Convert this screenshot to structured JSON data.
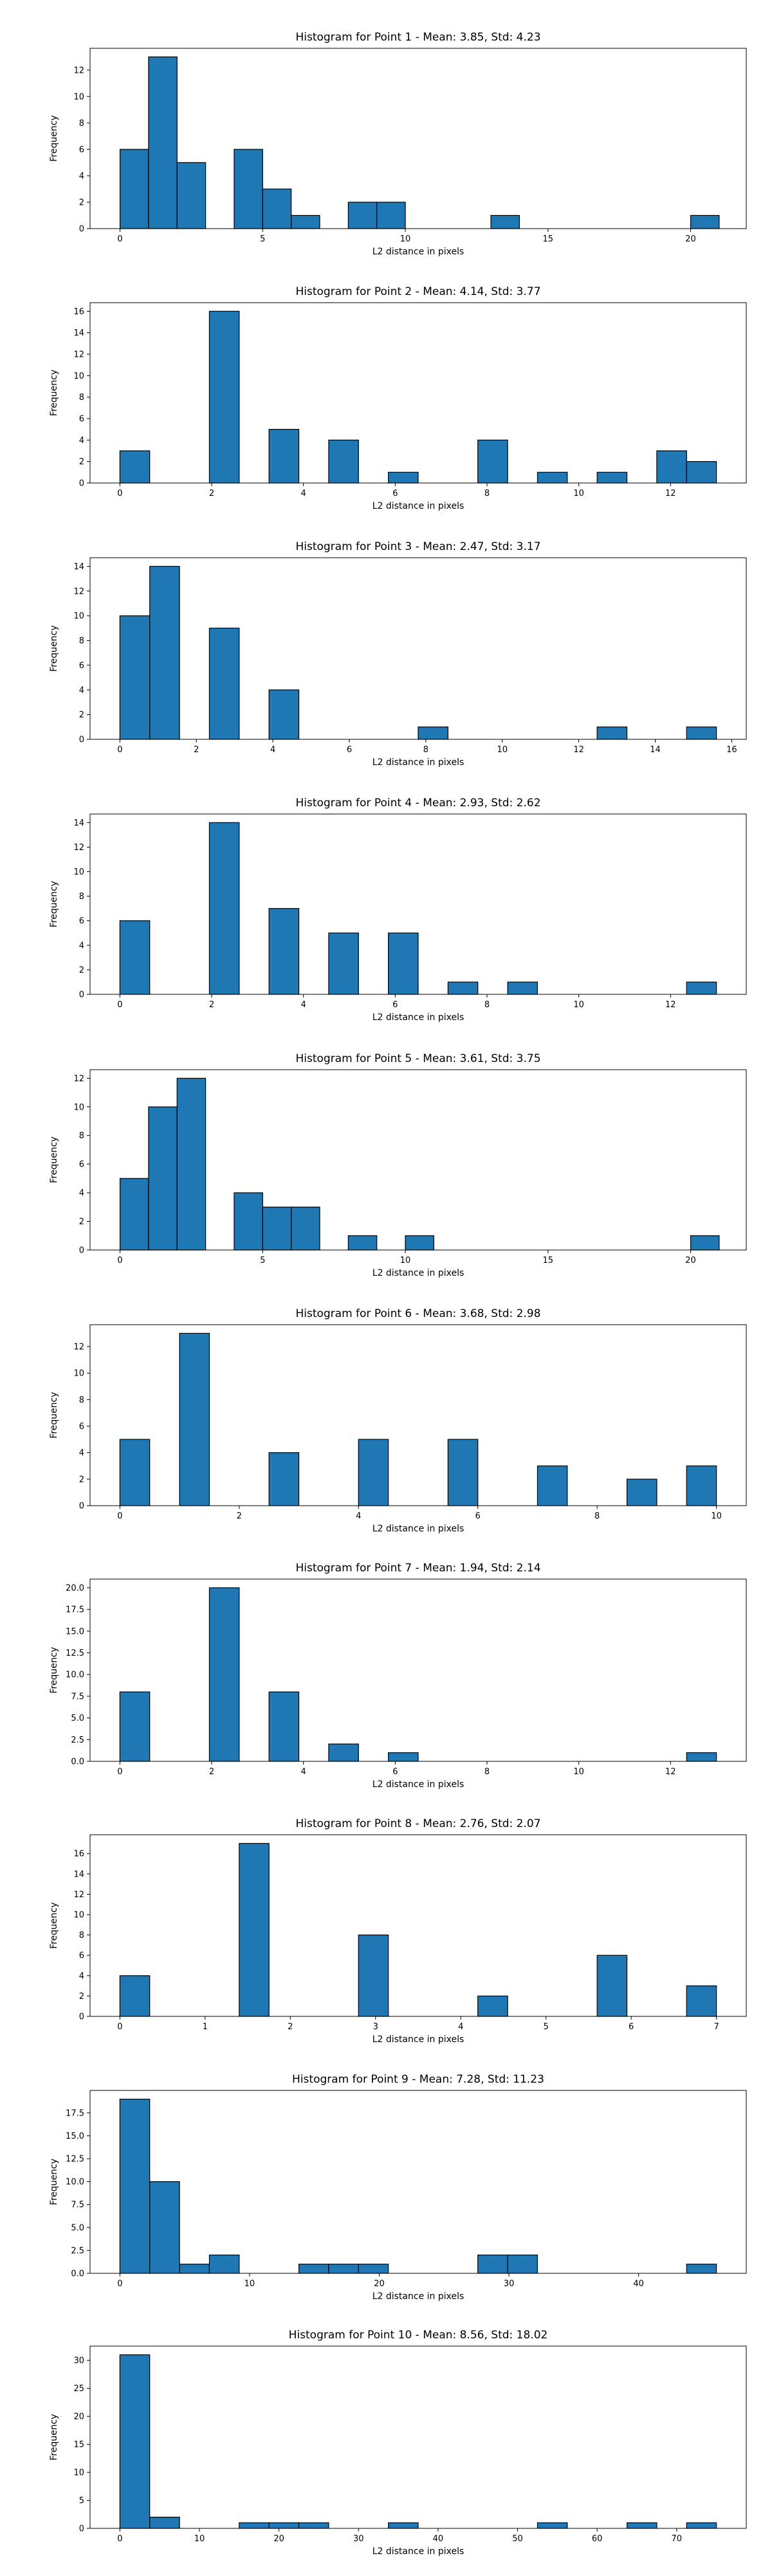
{
  "colors": {
    "bar_fill": "#1f77b4",
    "bar_edge": "#000000",
    "axis": "#000000",
    "background": "#ffffff"
  },
  "chart_data": [
    {
      "type": "bar",
      "title": "Histogram for Point 1 - Mean: 3.85, Std: 4.23",
      "xlabel": "L2 distance in pixels",
      "ylabel": "Frequency",
      "xlim": [
        -1.05,
        21.95
      ],
      "ylim": [
        0,
        13.65
      ],
      "xticks": [
        0,
        5,
        10,
        15,
        20
      ],
      "xtick_labels": [
        "0",
        "5",
        "10",
        "15",
        "20"
      ],
      "yticks": [
        0,
        2,
        4,
        6,
        8,
        10,
        12
      ],
      "ytick_labels": [
        "0",
        "2",
        "4",
        "6",
        "8",
        "10",
        "12"
      ],
      "bin_edges": [
        0,
        1.0,
        2.0,
        3.0,
        4.0,
        5.0,
        6.0,
        7.0,
        8.0,
        9.0,
        10.0,
        11.0,
        12.0,
        13.0,
        14.0,
        15.0,
        16.0,
        17.0,
        18.0,
        19.0,
        20.0,
        21.0
      ],
      "counts": [
        6,
        13,
        5,
        0,
        6,
        3,
        1,
        0,
        2,
        2,
        0,
        0,
        0,
        1,
        0,
        0,
        0,
        0,
        0,
        0,
        1
      ],
      "grid": false,
      "legend": "none"
    },
    {
      "type": "bar",
      "title": "Histogram for Point 2 - Mean: 4.14, Std: 3.77",
      "xlabel": "L2 distance in pixels",
      "ylabel": "Frequency",
      "xlim": [
        -0.65,
        13.65
      ],
      "ylim": [
        0,
        16.8
      ],
      "xticks": [
        0,
        2,
        4,
        6,
        8,
        10,
        12
      ],
      "xtick_labels": [
        "0",
        "2",
        "4",
        "6",
        "8",
        "10",
        "12"
      ],
      "yticks": [
        0,
        2,
        4,
        6,
        8,
        10,
        12,
        14,
        16
      ],
      "ytick_labels": [
        "0",
        "2",
        "4",
        "6",
        "8",
        "10",
        "12",
        "14",
        "16"
      ],
      "bin_edges": [
        0,
        0.65,
        1.3,
        1.95,
        2.6,
        3.25,
        3.9,
        4.55,
        5.2,
        5.85,
        6.5,
        7.15,
        7.8,
        8.45,
        9.1,
        9.75,
        10.4,
        11.05,
        11.7,
        12.35,
        13.0
      ],
      "counts": [
        3,
        0,
        0,
        16,
        0,
        5,
        0,
        4,
        0,
        1,
        0,
        0,
        4,
        0,
        1,
        0,
        1,
        0,
        3,
        2
      ],
      "grid": false,
      "legend": "none"
    },
    {
      "type": "bar",
      "title": "Histogram for Point 3 - Mean: 2.47, Std: 3.17",
      "xlabel": "L2 distance in pixels",
      "ylabel": "Frequency",
      "xlim": [
        -0.78,
        16.38
      ],
      "ylim": [
        0,
        14.7
      ],
      "xticks": [
        0,
        2,
        4,
        6,
        8,
        10,
        12,
        14,
        16
      ],
      "xtick_labels": [
        "0",
        "2",
        "4",
        "6",
        "8",
        "10",
        "12",
        "14",
        "16"
      ],
      "yticks": [
        0,
        2,
        4,
        6,
        8,
        10,
        12,
        14
      ],
      "ytick_labels": [
        "0",
        "2",
        "4",
        "6",
        "8",
        "10",
        "12",
        "14"
      ],
      "bin_edges": [
        0,
        0.78,
        1.56,
        2.34,
        3.12,
        3.9,
        4.68,
        5.46,
        6.24,
        7.02,
        7.8,
        8.58,
        9.36,
        10.14,
        10.92,
        11.7,
        12.48,
        13.26,
        14.04,
        14.82,
        15.6
      ],
      "counts": [
        10,
        14,
        0,
        9,
        0,
        4,
        0,
        0,
        0,
        0,
        1,
        0,
        0,
        0,
        0,
        0,
        1,
        0,
        0,
        1
      ],
      "grid": false,
      "legend": "none"
    },
    {
      "type": "bar",
      "title": "Histogram for Point 4 - Mean: 2.93, Std: 2.62",
      "xlabel": "L2 distance in pixels",
      "ylabel": "Frequency",
      "xlim": [
        -0.65,
        13.65
      ],
      "ylim": [
        0,
        14.7
      ],
      "xticks": [
        0,
        2,
        4,
        6,
        8,
        10,
        12
      ],
      "xtick_labels": [
        "0",
        "2",
        "4",
        "6",
        "8",
        "10",
        "12"
      ],
      "yticks": [
        0,
        2,
        4,
        6,
        8,
        10,
        12,
        14
      ],
      "ytick_labels": [
        "0",
        "2",
        "4",
        "6",
        "8",
        "10",
        "12",
        "14"
      ],
      "bin_edges": [
        0,
        0.65,
        1.3,
        1.95,
        2.6,
        3.25,
        3.9,
        4.55,
        5.2,
        5.85,
        6.5,
        7.15,
        7.8,
        8.45,
        9.1,
        9.75,
        10.4,
        11.05,
        11.7,
        12.35,
        13.0
      ],
      "counts": [
        6,
        0,
        0,
        14,
        0,
        7,
        0,
        5,
        0,
        5,
        0,
        1,
        0,
        1,
        0,
        0,
        0,
        0,
        0,
        1
      ],
      "grid": false,
      "legend": "none"
    },
    {
      "type": "bar",
      "title": "Histogram for Point 5 - Mean: 3.61, Std: 3.75",
      "xlabel": "L2 distance in pixels",
      "ylabel": "Frequency",
      "xlim": [
        -1.05,
        21.95
      ],
      "ylim": [
        0,
        12.6
      ],
      "xticks": [
        0,
        5,
        10,
        15,
        20
      ],
      "xtick_labels": [
        "0",
        "5",
        "10",
        "15",
        "20"
      ],
      "yticks": [
        0,
        2,
        4,
        6,
        8,
        10,
        12
      ],
      "ytick_labels": [
        "0",
        "2",
        "4",
        "6",
        "8",
        "10",
        "12"
      ],
      "bin_edges": [
        0,
        1.0,
        2.0,
        3.0,
        4.0,
        5.0,
        6.0,
        7.0,
        8.0,
        9.0,
        10.0,
        11.0,
        12.0,
        13.0,
        14.0,
        15.0,
        16.0,
        17.0,
        18.0,
        19.0,
        20.0,
        21.0
      ],
      "counts": [
        5,
        10,
        12,
        0,
        4,
        3,
        3,
        0,
        1,
        0,
        1,
        0,
        0,
        0,
        0,
        0,
        0,
        0,
        0,
        0,
        1
      ],
      "grid": false,
      "legend": "none"
    },
    {
      "type": "bar",
      "title": "Histogram for Point 6 - Mean: 3.68, Std: 2.98",
      "xlabel": "L2 distance in pixels",
      "ylabel": "Frequency",
      "xlim": [
        -0.5,
        10.5
      ],
      "ylim": [
        0,
        13.65
      ],
      "xticks": [
        0,
        2,
        4,
        6,
        8,
        10
      ],
      "xtick_labels": [
        "0",
        "2",
        "4",
        "6",
        "8",
        "10"
      ],
      "yticks": [
        0,
        2,
        4,
        6,
        8,
        10,
        12
      ],
      "ytick_labels": [
        "0",
        "2",
        "4",
        "6",
        "8",
        "10",
        "12"
      ],
      "bin_edges": [
        0,
        0.5,
        1.0,
        1.5,
        2.0,
        2.5,
        3.0,
        3.5,
        4.0,
        4.5,
        5.0,
        5.5,
        6.0,
        6.5,
        7.0,
        7.5,
        8.0,
        8.5,
        9.0,
        9.5,
        10.0
      ],
      "counts": [
        5,
        0,
        13,
        0,
        0,
        4,
        0,
        0,
        5,
        0,
        0,
        5,
        0,
        0,
        3,
        0,
        0,
        2,
        0,
        3
      ],
      "grid": false,
      "legend": "none"
    },
    {
      "type": "bar",
      "title": "Histogram for Point 7 - Mean: 1.94, Std: 2.14",
      "xlabel": "L2 distance in pixels",
      "ylabel": "Frequency",
      "xlim": [
        -0.65,
        13.65
      ],
      "ylim": [
        0,
        21.0
      ],
      "xticks": [
        0,
        2,
        4,
        6,
        8,
        10,
        12
      ],
      "xtick_labels": [
        "0",
        "2",
        "4",
        "6",
        "8",
        "10",
        "12"
      ],
      "yticks": [
        0,
        2.5,
        5,
        7.5,
        10,
        12.5,
        15,
        17.5,
        20
      ],
      "ytick_labels": [
        "0.0",
        "2.5",
        "5.0",
        "7.5",
        "10.0",
        "12.5",
        "15.0",
        "17.5",
        "20.0"
      ],
      "bin_edges": [
        0,
        0.65,
        1.3,
        1.95,
        2.6,
        3.25,
        3.9,
        4.55,
        5.2,
        5.85,
        6.5,
        7.15,
        7.8,
        8.45,
        9.1,
        9.75,
        10.4,
        11.05,
        11.7,
        12.35,
        13.0
      ],
      "counts": [
        8,
        0,
        0,
        20,
        0,
        8,
        0,
        2,
        0,
        1,
        0,
        0,
        0,
        0,
        0,
        0,
        0,
        0,
        0,
        1
      ],
      "grid": false,
      "legend": "none"
    },
    {
      "type": "bar",
      "title": "Histogram for Point 8 - Mean: 2.76, Std: 2.07",
      "xlabel": "L2 distance in pixels",
      "ylabel": "Frequency",
      "xlim": [
        -0.35,
        7.35
      ],
      "ylim": [
        0,
        17.85
      ],
      "xticks": [
        0,
        1,
        2,
        3,
        4,
        5,
        6,
        7
      ],
      "xtick_labels": [
        "0",
        "1",
        "2",
        "3",
        "4",
        "5",
        "6",
        "7"
      ],
      "yticks": [
        0,
        2,
        4,
        6,
        8,
        10,
        12,
        14,
        16
      ],
      "ytick_labels": [
        "0",
        "2",
        "4",
        "6",
        "8",
        "10",
        "12",
        "14",
        "16"
      ],
      "bin_edges": [
        0,
        0.35,
        0.7,
        1.05,
        1.4,
        1.75,
        2.1,
        2.45,
        2.8,
        3.15,
        3.5,
        3.85,
        4.2,
        4.55,
        4.9,
        5.25,
        5.6,
        5.95,
        6.3,
        6.65,
        7.0
      ],
      "counts": [
        4,
        0,
        0,
        0,
        17,
        0,
        0,
        0,
        8,
        0,
        0,
        0,
        2,
        0,
        0,
        0,
        6,
        0,
        0,
        3
      ],
      "grid": false,
      "legend": "none"
    },
    {
      "type": "bar",
      "title": "Histogram for Point 9 - Mean: 7.28, Std: 11.23",
      "xlabel": "L2 distance in pixels",
      "ylabel": "Frequency",
      "xlim": [
        -2.3,
        48.3
      ],
      "ylim": [
        0,
        19.95
      ],
      "xticks": [
        0,
        10,
        20,
        30,
        40
      ],
      "xtick_labels": [
        "0",
        "10",
        "20",
        "30",
        "40"
      ],
      "yticks": [
        0,
        2.5,
        5,
        7.5,
        10,
        12.5,
        15,
        17.5
      ],
      "ytick_labels": [
        "0.0",
        "2.5",
        "5.0",
        "7.5",
        "10.0",
        "12.5",
        "15.0",
        "17.5"
      ],
      "bin_edges": [
        0,
        2.3,
        4.6,
        6.9,
        9.2,
        11.5,
        13.8,
        16.1,
        18.4,
        20.7,
        23.0,
        25.3,
        27.6,
        29.9,
        32.2,
        34.5,
        36.8,
        39.1,
        41.4,
        43.7,
        46.0
      ],
      "counts": [
        19,
        10,
        1,
        2,
        0,
        0,
        1,
        1,
        1,
        0,
        0,
        0,
        2,
        2,
        0,
        0,
        0,
        0,
        0,
        1
      ],
      "grid": false,
      "legend": "none"
    },
    {
      "type": "bar",
      "title": "Histogram for Point 10 - Mean: 8.56, Std: 18.02",
      "xlabel": "L2 distance in pixels",
      "ylabel": "Frequency",
      "xlim": [
        -3.75,
        78.75
      ],
      "ylim": [
        0,
        32.55
      ],
      "xticks": [
        0,
        10,
        20,
        30,
        40,
        50,
        60,
        70
      ],
      "xtick_labels": [
        "0",
        "10",
        "20",
        "30",
        "40",
        "50",
        "60",
        "70"
      ],
      "yticks": [
        0,
        5,
        10,
        15,
        20,
        25,
        30
      ],
      "ytick_labels": [
        "0",
        "5",
        "10",
        "15",
        "20",
        "25",
        "30"
      ],
      "bin_edges": [
        0,
        3.75,
        7.5,
        11.25,
        15.0,
        18.75,
        22.5,
        26.25,
        30.0,
        33.75,
        37.5,
        41.25,
        45.0,
        48.75,
        52.5,
        56.25,
        60.0,
        63.75,
        67.5,
        71.25,
        75.0
      ],
      "counts": [
        31,
        2,
        0,
        0,
        1,
        1,
        1,
        0,
        0,
        1,
        0,
        0,
        0,
        0,
        1,
        0,
        0,
        1,
        0,
        1
      ],
      "grid": false,
      "legend": "none"
    }
  ]
}
